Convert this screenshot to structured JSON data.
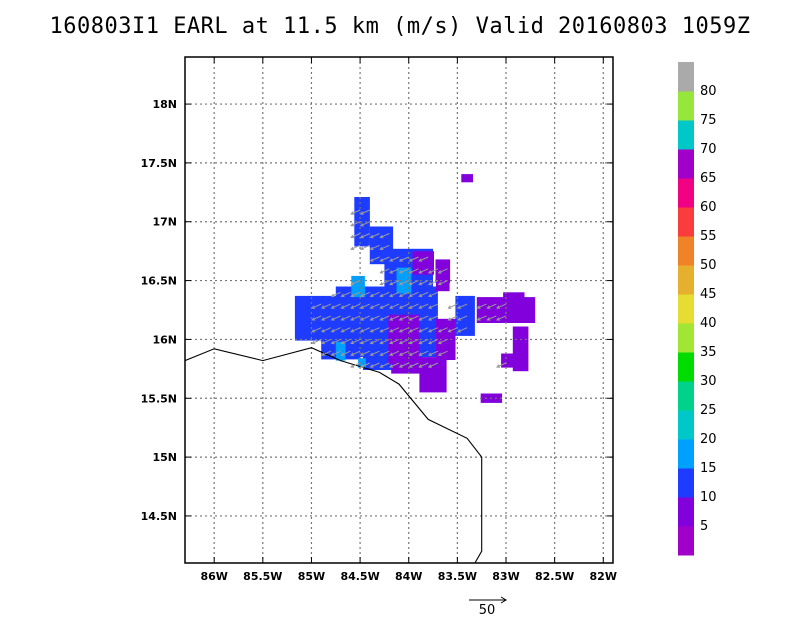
{
  "title": "160803I1 EARL at 11.5 km (m/s) Valid 20160803 1059Z",
  "map": {
    "lon_range": [
      -86.3,
      -81.9
    ],
    "lat_range": [
      14.1,
      18.4
    ],
    "lon_ticks": [
      {
        "v": -86,
        "label": "86W"
      },
      {
        "v": -85.5,
        "label": "85.5W"
      },
      {
        "v": -85,
        "label": "85W"
      },
      {
        "v": -84.5,
        "label": "84.5W"
      },
      {
        "v": -84,
        "label": "84W"
      },
      {
        "v": -83.5,
        "label": "83.5W"
      },
      {
        "v": -83,
        "label": "83W"
      },
      {
        "v": -82.5,
        "label": "82.5W"
      },
      {
        "v": -82,
        "label": "82W"
      }
    ],
    "lat_ticks": [
      {
        "v": 18,
        "label": "18N"
      },
      {
        "v": 17.5,
        "label": "17.5N"
      },
      {
        "v": 17,
        "label": "17N"
      },
      {
        "v": 16.5,
        "label": "16.5N"
      },
      {
        "v": 16,
        "label": "16N"
      },
      {
        "v": 15.5,
        "label": "15.5N"
      },
      {
        "v": 15,
        "label": "15N"
      },
      {
        "v": 14.5,
        "label": "14.5N"
      }
    ],
    "grid": true,
    "coastline": [
      [
        -86.3,
        15.82
      ],
      [
        -86.0,
        15.92
      ],
      [
        -85.5,
        15.82
      ],
      [
        -85.0,
        15.93
      ],
      [
        -84.7,
        15.82
      ],
      [
        -84.3,
        15.72
      ],
      [
        -84.1,
        15.62
      ],
      [
        -83.8,
        15.32
      ],
      [
        -83.4,
        15.16
      ],
      [
        -83.25,
        15.0
      ],
      [
        -83.25,
        14.2
      ],
      [
        -83.32,
        14.1
      ]
    ],
    "wind_cells": [
      {
        "lon": -84.48,
        "lat": 17.0,
        "w": 0.16,
        "h": 0.42,
        "speed": 12
      },
      {
        "lon": -84.28,
        "lat": 16.8,
        "w": 0.24,
        "h": 0.32,
        "speed": 12
      },
      {
        "lon": -84.0,
        "lat": 16.6,
        "w": 0.5,
        "h": 0.34,
        "speed": 12
      },
      {
        "lon": -84.2,
        "lat": 16.15,
        "w": 1.0,
        "h": 0.6,
        "speed": 12
      },
      {
        "lon": -84.92,
        "lat": 16.18,
        "w": 0.5,
        "h": 0.38,
        "speed": 12
      },
      {
        "lon": -84.55,
        "lat": 16.2,
        "w": 0.4,
        "h": 0.5,
        "speed": 12
      },
      {
        "lon": -84.7,
        "lat": 15.92,
        "w": 0.4,
        "h": 0.18,
        "speed": 12
      },
      {
        "lon": -84.3,
        "lat": 15.87,
        "w": 0.34,
        "h": 0.26,
        "speed": 12
      },
      {
        "lon": -83.42,
        "lat": 16.2,
        "w": 0.2,
        "h": 0.34,
        "speed": 12
      },
      {
        "lon": -84.52,
        "lat": 16.45,
        "w": 0.14,
        "h": 0.18,
        "speed": 17
      },
      {
        "lon": -84.05,
        "lat": 16.5,
        "w": 0.15,
        "h": 0.22,
        "speed": 17
      },
      {
        "lon": -84.7,
        "lat": 15.9,
        "w": 0.1,
        "h": 0.16,
        "speed": 17
      },
      {
        "lon": -84.48,
        "lat": 15.8,
        "w": 0.08,
        "h": 0.08,
        "speed": 17
      },
      {
        "lon": -83.85,
        "lat": 16.65,
        "w": 0.22,
        "h": 0.2,
        "speed": 7
      },
      {
        "lon": -83.65,
        "lat": 16.58,
        "w": 0.15,
        "h": 0.2,
        "speed": 7
      },
      {
        "lon": -84.05,
        "lat": 16.0,
        "w": 0.32,
        "h": 0.42,
        "speed": 7
      },
      {
        "lon": -84.02,
        "lat": 15.78,
        "w": 0.32,
        "h": 0.14,
        "speed": 7
      },
      {
        "lon": -83.75,
        "lat": 15.7,
        "w": 0.28,
        "h": 0.3,
        "speed": 7
      },
      {
        "lon": -83.62,
        "lat": 16.0,
        "w": 0.2,
        "h": 0.35,
        "speed": 7
      },
      {
        "lon": -83.65,
        "lat": 16.48,
        "w": 0.14,
        "h": 0.14,
        "speed": 7
      },
      {
        "lon": -83.0,
        "lat": 16.25,
        "w": 0.6,
        "h": 0.22,
        "speed": 7
      },
      {
        "lon": -82.92,
        "lat": 16.35,
        "w": 0.22,
        "h": 0.1,
        "speed": 7
      },
      {
        "lon": -82.85,
        "lat": 15.92,
        "w": 0.16,
        "h": 0.38,
        "speed": 7
      },
      {
        "lon": -82.95,
        "lat": 15.82,
        "w": 0.2,
        "h": 0.12,
        "speed": 7
      },
      {
        "lon": -83.4,
        "lat": 17.37,
        "w": 0.12,
        "h": 0.07,
        "speed": 7
      },
      {
        "lon": -83.15,
        "lat": 15.5,
        "w": 0.22,
        "h": 0.08,
        "speed": 7
      }
    ],
    "wind_vectors": {
      "region": {
        "lon": [
          -84.9,
          -83.0
        ],
        "lat": [
          15.8,
          17.1
        ]
      },
      "spacing": 0.1,
      "u": -9,
      "v": -4
    },
    "reference_vector": {
      "label": "50",
      "speed": 50
    }
  },
  "colorbar": {
    "bins": [
      {
        "color": "#a000c8",
        "label": "5"
      },
      {
        "color": "#8200dc",
        "label": "10"
      },
      {
        "color": "#1e3cff",
        "label": "15"
      },
      {
        "color": "#00a0ff",
        "label": "20"
      },
      {
        "color": "#00c8c8",
        "label": "25"
      },
      {
        "color": "#00d28c",
        "label": "30"
      },
      {
        "color": "#00dc00",
        "label": "35"
      },
      {
        "color": "#a0e632",
        "label": "40"
      },
      {
        "color": "#e6dc32",
        "label": "45"
      },
      {
        "color": "#e6af2d",
        "label": "50"
      },
      {
        "color": "#f08228",
        "label": "55"
      },
      {
        "color": "#fa3c3c",
        "label": "60"
      },
      {
        "color": "#f00082",
        "label": "65"
      },
      {
        "color": "#a000c8",
        "label": "70"
      },
      {
        "color": "#00c8c8",
        "label": "75"
      },
      {
        "color": "#96e63c",
        "label": "80"
      },
      {
        "color": "#aaaaaa",
        "label": ""
      }
    ]
  }
}
